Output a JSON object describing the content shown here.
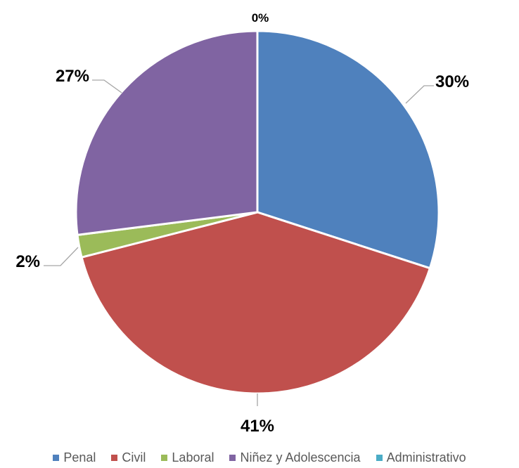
{
  "chart_data": {
    "type": "pie",
    "title": "",
    "categories": [
      "Penal",
      "Civil",
      "Laboral",
      "Niñez y Adolescencia",
      "Administrativo"
    ],
    "values": [
      30,
      41,
      2,
      27,
      0
    ],
    "labels": [
      "30%",
      "41%",
      "2%",
      "27%",
      "0%"
    ],
    "colors": [
      "#4F81BD",
      "#C0504D",
      "#9BBB59",
      "#8064A2",
      "#4BACC6"
    ],
    "legend_position": "bottom",
    "start_angle": "12 o'clock",
    "direction": "clockwise"
  }
}
